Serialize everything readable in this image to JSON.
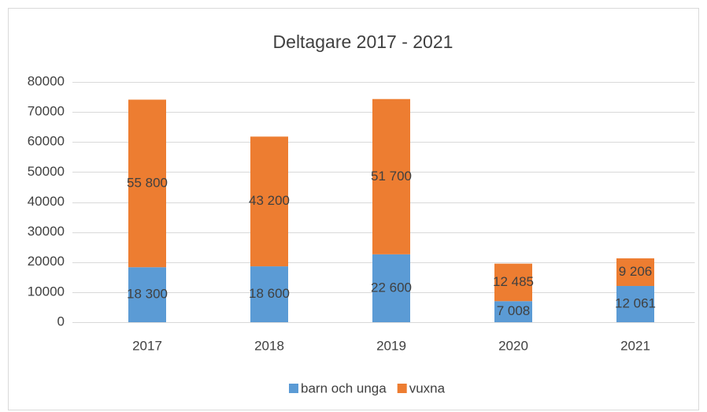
{
  "chart_data": {
    "type": "stacked_bar",
    "title": "Deltagare 2017 - 2021",
    "categories": [
      "2017",
      "2018",
      "2019",
      "2020",
      "2021"
    ],
    "series": [
      {
        "name": "barn och unga",
        "color": "#5b9bd5",
        "values": [
          18300,
          18600,
          22600,
          7008,
          12061
        ],
        "value_labels": [
          "18 300",
          "18 600",
          "22 600",
          "7 008",
          "12 061"
        ]
      },
      {
        "name": "vuxna",
        "color": "#ed7d31",
        "values": [
          55800,
          43200,
          51700,
          12485,
          9206
        ],
        "value_labels": [
          "55 800",
          "43 200",
          "51 700",
          "12 485",
          "9 206"
        ]
      }
    ],
    "ylim": [
      0,
      80000
    ],
    "yticks": [
      0,
      10000,
      20000,
      30000,
      40000,
      50000,
      60000,
      70000,
      80000
    ],
    "grid": true,
    "legend": "bottom"
  }
}
